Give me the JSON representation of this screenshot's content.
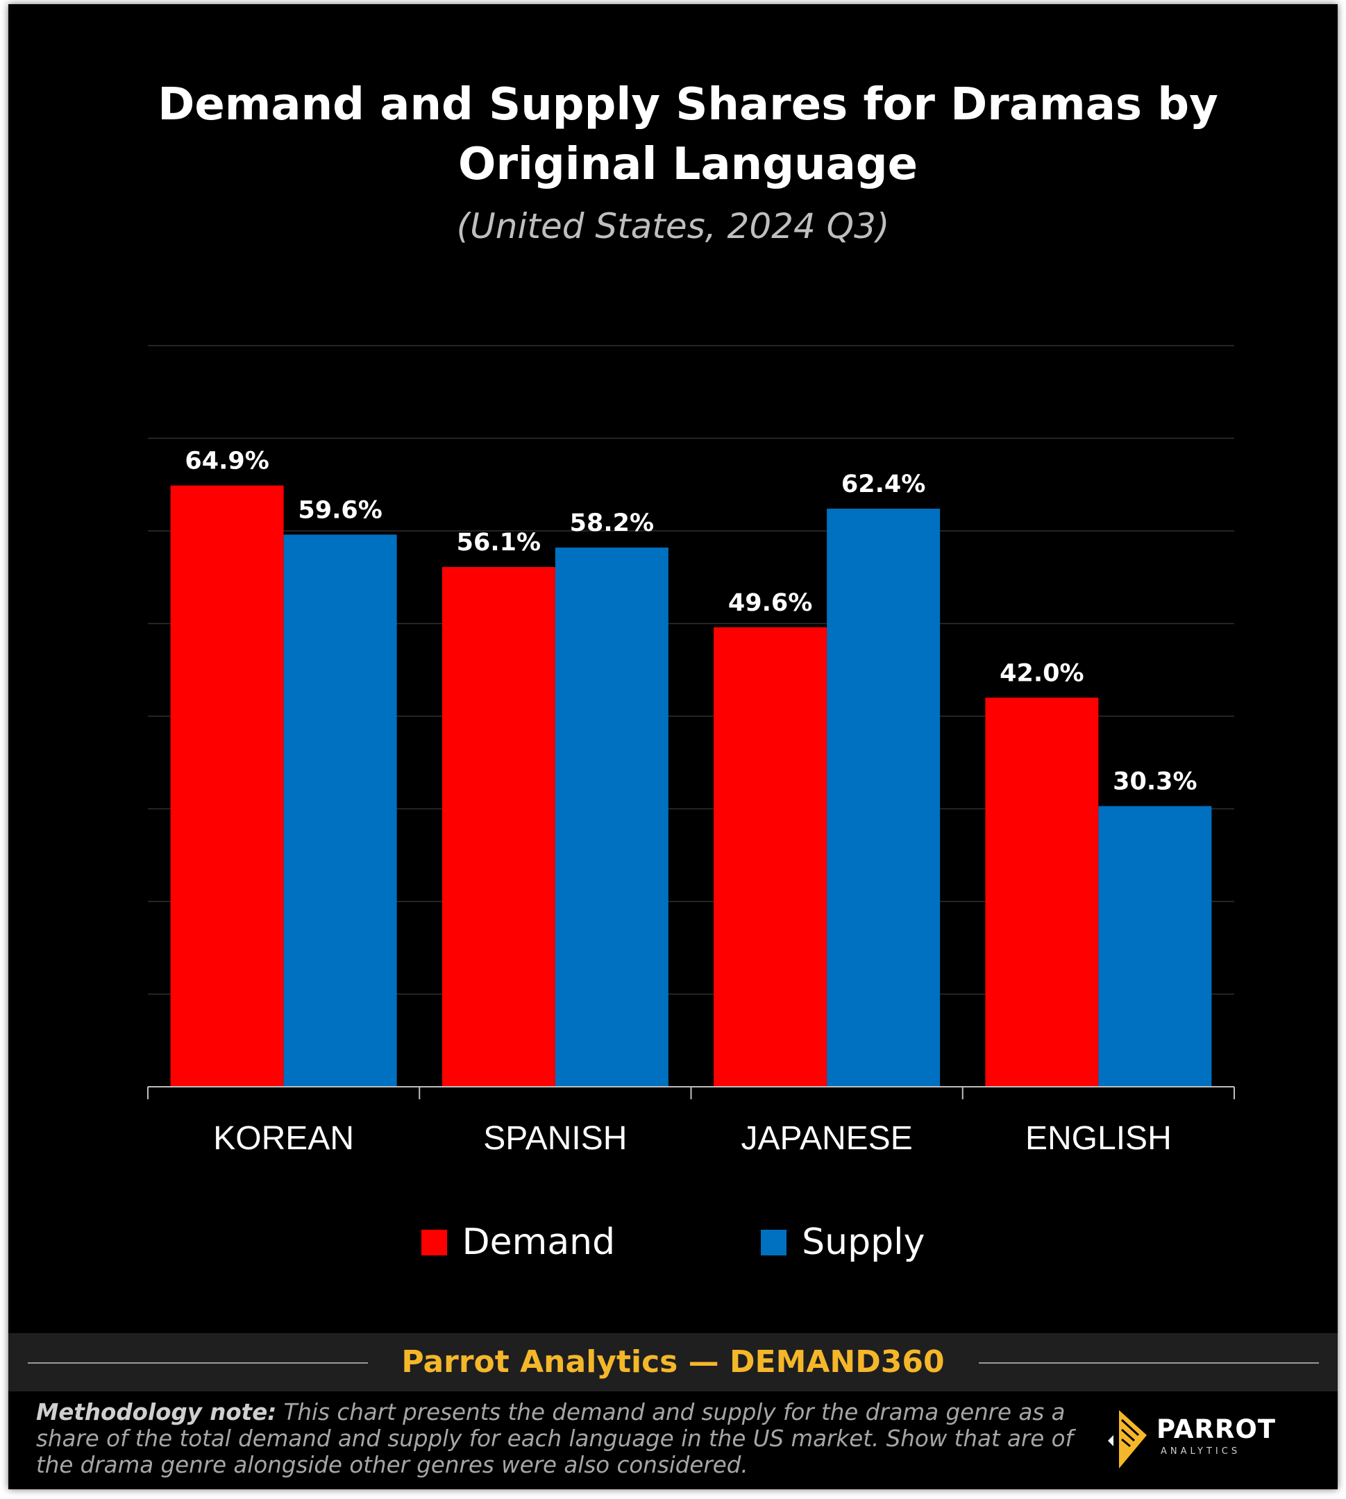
{
  "chart_data": {
    "type": "bar",
    "title": "Demand and Supply Shares for Dramas by Original Language",
    "subtitle": "(United States, 2024 Q3)",
    "categories": [
      "KOREAN",
      "SPANISH",
      "JAPANESE",
      "ENGLISH"
    ],
    "series": [
      {
        "name": "Demand",
        "color": "#ff0000",
        "values": [
          64.9,
          56.1,
          49.6,
          42.0
        ],
        "labels": [
          "64.9%",
          "56.1%",
          "49.6%",
          "42.0%"
        ]
      },
      {
        "name": "Supply",
        "color": "#0070c0",
        "values": [
          59.6,
          58.2,
          62.4,
          30.3
        ],
        "labels": [
          "59.6%",
          "58.2%",
          "62.4%",
          "30.3%"
        ]
      }
    ],
    "ylim": [
      0,
      80
    ],
    "grid": true,
    "legend_position": "bottom-center"
  },
  "footer": {
    "brand": "Parrot Analytics  —  DEMAND360",
    "note_label": "Methodology note:",
    "note_text": " This chart presents the demand and supply for the drama genre as a share of the total demand and supply for each language in the US market. Show that are of the drama genre alongside other genres were also considered.",
    "logo_word": "PARROT",
    "logo_sub": "ANALYTICS"
  },
  "colors": {
    "background": "#000000",
    "brand_accent": "#f5b72a",
    "grid": "#303030"
  }
}
